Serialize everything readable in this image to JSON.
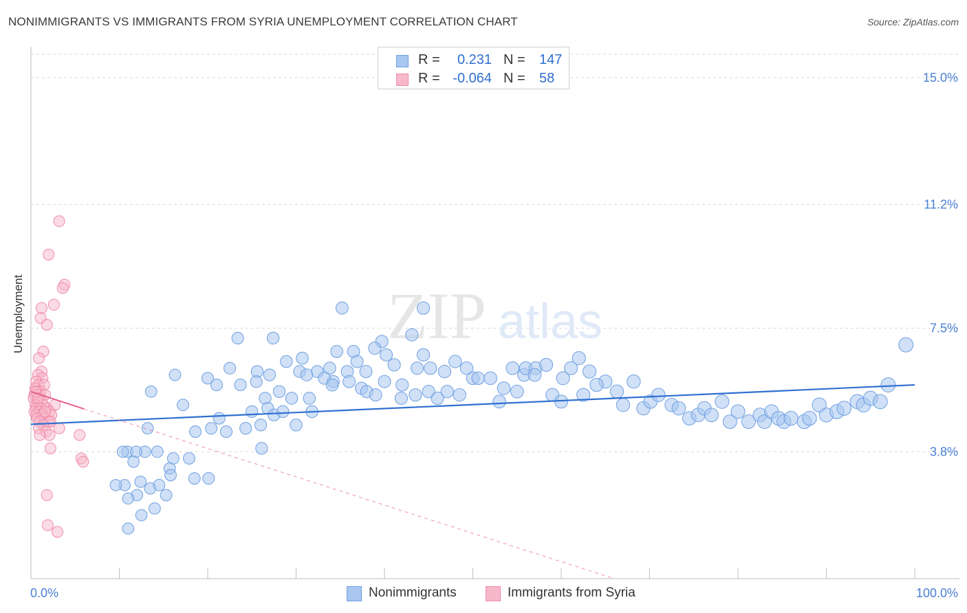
{
  "header": {
    "title": "NONIMMIGRANTS VS IMMIGRANTS FROM SYRIA UNEMPLOYMENT CORRELATION CHART",
    "source": "Source: ZipAtlas.com"
  },
  "legend": {
    "r_label": "R =",
    "n_label": "N =",
    "rows": [
      {
        "r": "0.231",
        "n": "147"
      },
      {
        "r": "-0.064",
        "n": "58"
      }
    ]
  },
  "watermark": {
    "zip": "ZIP",
    "atlas": "atlas"
  },
  "chart_data": {
    "type": "scatter",
    "title": "NONIMMIGRANTS VS IMMIGRANTS FROM SYRIA UNEMPLOYMENT CORRELATION CHART",
    "xlabel": "",
    "ylabel": "Unemployment",
    "xlim": [
      0,
      100
    ],
    "ylim": [
      0,
      15.8
    ],
    "x_tick_labels": [
      "0.0%",
      "100.0%"
    ],
    "y_ticks": [
      {
        "value": 3.8,
        "label": "3.8%"
      },
      {
        "value": 7.5,
        "label": "7.5%"
      },
      {
        "value": 11.2,
        "label": "11.2%"
      },
      {
        "value": 15.0,
        "label": "15.0%"
      }
    ],
    "grid": true,
    "legend_position": "top-center",
    "colors": {
      "series1_fill": "#a8c6f0",
      "series1_stroke": "#6f9fe0",
      "series1_line": "#2f6fd0",
      "series2_fill": "#f7b8cb",
      "series2_stroke": "#ef8aa8",
      "series2_line": "#e8608a",
      "axis_text": "#4a7fd4",
      "grid": "#d9d9d9"
    },
    "series": [
      {
        "name": "Nonimmigrants",
        "r": 0.231,
        "n": 147,
        "trend": {
          "x": [
            0,
            100
          ],
          "y": [
            4.62,
            5.8
          ]
        },
        "points": [
          [
            35.2,
            8.1
          ],
          [
            44.4,
            8.1
          ],
          [
            43.1,
            7.3
          ],
          [
            23.4,
            7.2
          ],
          [
            27.4,
            7.2
          ],
          [
            39.7,
            7.1
          ],
          [
            30.7,
            6.6
          ],
          [
            34.6,
            6.8
          ],
          [
            36.5,
            6.8
          ],
          [
            33.8,
            6.3
          ],
          [
            35.8,
            6.2
          ],
          [
            37.9,
            6.2
          ],
          [
            36.9,
            6.5
          ],
          [
            32.4,
            6.2
          ],
          [
            28.9,
            6.5
          ],
          [
            30.4,
            6.2
          ],
          [
            34.2,
            5.9
          ],
          [
            44.4,
            6.7
          ],
          [
            45.2,
            6.3
          ],
          [
            43.7,
            6.3
          ],
          [
            41.1,
            6.4
          ],
          [
            40.2,
            6.7
          ],
          [
            38.9,
            6.9
          ],
          [
            47.1,
            5.6
          ],
          [
            46.8,
            6.2
          ],
          [
            48.0,
            6.5
          ],
          [
            49.3,
            6.3
          ],
          [
            50.0,
            6.0
          ],
          [
            50.6,
            6.0
          ],
          [
            52.0,
            6.0
          ],
          [
            53.5,
            5.7
          ],
          [
            54.5,
            6.3
          ],
          [
            55.8,
            6.1
          ],
          [
            56.0,
            6.3
          ],
          [
            57.1,
            6.3
          ],
          [
            58.3,
            6.4
          ],
          [
            60.2,
            6.0
          ],
          [
            61.1,
            6.3
          ],
          [
            62.0,
            6.6
          ],
          [
            63.2,
            6.2
          ],
          [
            65.0,
            5.9
          ],
          [
            66.3,
            5.6
          ],
          [
            68.2,
            5.9
          ],
          [
            69.3,
            5.1
          ],
          [
            70.1,
            5.3
          ],
          [
            71.0,
            5.5
          ],
          [
            72.5,
            5.2
          ],
          [
            73.3,
            5.1
          ],
          [
            74.5,
            4.8
          ],
          [
            75.5,
            4.9
          ],
          [
            76.2,
            5.1
          ],
          [
            77.0,
            4.9
          ],
          [
            78.2,
            5.3
          ],
          [
            79.1,
            4.7
          ],
          [
            80.0,
            5.0
          ],
          [
            81.2,
            4.7
          ],
          [
            82.5,
            4.9
          ],
          [
            83.0,
            4.7
          ],
          [
            83.8,
            5.0
          ],
          [
            84.6,
            4.8
          ],
          [
            85.2,
            4.7
          ],
          [
            86.0,
            4.8
          ],
          [
            87.5,
            4.7
          ],
          [
            88.1,
            4.8
          ],
          [
            89.2,
            5.2
          ],
          [
            90.0,
            4.9
          ],
          [
            91.2,
            5.0
          ],
          [
            92.0,
            5.1
          ],
          [
            93.5,
            5.3
          ],
          [
            94.2,
            5.2
          ],
          [
            95.0,
            5.4
          ],
          [
            96.1,
            5.3
          ],
          [
            97.0,
            5.8
          ],
          [
            99.0,
            7.0
          ],
          [
            13.6,
            5.6
          ],
          [
            16.3,
            6.1
          ],
          [
            20.0,
            6.0
          ],
          [
            21.0,
            5.8
          ],
          [
            23.7,
            5.8
          ],
          [
            22.5,
            6.3
          ],
          [
            25.6,
            6.2
          ],
          [
            27.0,
            6.1
          ],
          [
            31.2,
            6.1
          ],
          [
            33.2,
            6.0
          ],
          [
            34.1,
            5.8
          ],
          [
            26.5,
            5.4
          ],
          [
            28.1,
            5.6
          ],
          [
            29.5,
            5.4
          ],
          [
            30.0,
            4.6
          ],
          [
            31.5,
            5.4
          ],
          [
            36.0,
            5.9
          ],
          [
            37.4,
            5.7
          ],
          [
            38.0,
            5.6
          ],
          [
            39.0,
            5.5
          ],
          [
            40.0,
            5.9
          ],
          [
            42.0,
            5.8
          ],
          [
            43.5,
            5.5
          ],
          [
            45.0,
            5.6
          ],
          [
            46.0,
            5.4
          ],
          [
            48.5,
            5.5
          ],
          [
            53.0,
            5.3
          ],
          [
            55.0,
            5.6
          ],
          [
            57.0,
            6.1
          ],
          [
            59.0,
            5.5
          ],
          [
            60.0,
            5.3
          ],
          [
            62.5,
            5.5
          ],
          [
            64.0,
            5.8
          ],
          [
            67.0,
            5.2
          ],
          [
            26.8,
            5.1
          ],
          [
            25.0,
            5.0
          ],
          [
            27.5,
            4.9
          ],
          [
            28.5,
            5.0
          ],
          [
            17.2,
            5.2
          ],
          [
            21.3,
            4.8
          ],
          [
            18.6,
            4.4
          ],
          [
            20.4,
            4.5
          ],
          [
            22.1,
            4.4
          ],
          [
            24.3,
            4.5
          ],
          [
            26.0,
            4.6
          ],
          [
            31.8,
            5.0
          ],
          [
            26.1,
            3.9
          ],
          [
            13.2,
            4.5
          ],
          [
            14.3,
            3.8
          ],
          [
            12.9,
            3.8
          ],
          [
            16.1,
            3.6
          ],
          [
            17.9,
            3.6
          ],
          [
            15.7,
            3.3
          ],
          [
            15.8,
            3.1
          ],
          [
            18.5,
            3.0
          ],
          [
            20.1,
            3.0
          ],
          [
            10.9,
            3.8
          ],
          [
            10.4,
            3.8
          ],
          [
            11.9,
            3.8
          ],
          [
            12.4,
            2.9
          ],
          [
            10.6,
            2.8
          ],
          [
            9.6,
            2.8
          ],
          [
            11.6,
            3.5
          ],
          [
            15.3,
            2.5
          ],
          [
            13.5,
            2.7
          ],
          [
            12.0,
            2.5
          ],
          [
            14.5,
            2.8
          ],
          [
            11.0,
            2.4
          ],
          [
            14.0,
            2.1
          ],
          [
            12.5,
            1.9
          ],
          [
            11.0,
            1.5
          ],
          [
            25.5,
            5.9
          ],
          [
            41.9,
            5.4
          ]
        ]
      },
      {
        "name": "Immigrants from Syria",
        "r": -0.064,
        "n": 58,
        "trend": {
          "x": [
            0,
            6
          ],
          "y": [
            5.6,
            5.08
          ]
        },
        "trend_dashed": {
          "x": [
            6,
            66
          ],
          "y": [
            5.08,
            0
          ]
        },
        "points": [
          [
            3.2,
            10.7
          ],
          [
            2.0,
            9.7
          ],
          [
            3.8,
            8.8
          ],
          [
            3.6,
            8.7
          ],
          [
            2.6,
            8.2
          ],
          [
            1.2,
            8.1
          ],
          [
            1.1,
            7.8
          ],
          [
            1.8,
            7.6
          ],
          [
            1.4,
            6.8
          ],
          [
            0.9,
            6.6
          ],
          [
            1.2,
            6.2
          ],
          [
            0.8,
            6.1
          ],
          [
            1.3,
            6.0
          ],
          [
            0.6,
            5.9
          ],
          [
            0.9,
            5.8
          ],
          [
            1.5,
            5.8
          ],
          [
            0.5,
            5.7
          ],
          [
            0.7,
            5.6
          ],
          [
            1.1,
            5.6
          ],
          [
            0.4,
            5.5
          ],
          [
            0.9,
            5.5
          ],
          [
            1.6,
            5.5
          ],
          [
            0.3,
            5.4
          ],
          [
            0.8,
            5.3
          ],
          [
            1.2,
            5.3
          ],
          [
            0.5,
            5.2
          ],
          [
            1.4,
            5.2
          ],
          [
            2.7,
            5.2
          ],
          [
            0.6,
            5.1
          ],
          [
            1.0,
            5.1
          ],
          [
            1.8,
            5.1
          ],
          [
            0.4,
            5.0
          ],
          [
            0.9,
            5.0
          ],
          [
            2.1,
            5.0
          ],
          [
            0.6,
            4.9
          ],
          [
            1.3,
            4.9
          ],
          [
            2.3,
            4.9
          ],
          [
            0.7,
            4.8
          ],
          [
            1.5,
            4.8
          ],
          [
            2.0,
            4.7
          ],
          [
            1.0,
            4.7
          ],
          [
            2.2,
            4.7
          ],
          [
            1.4,
            4.6
          ],
          [
            3.2,
            4.5
          ],
          [
            0.9,
            4.5
          ],
          [
            1.7,
            4.4
          ],
          [
            2.1,
            4.3
          ],
          [
            1.0,
            4.3
          ],
          [
            5.5,
            4.3
          ],
          [
            2.2,
            3.9
          ],
          [
            5.7,
            3.6
          ],
          [
            5.9,
            3.5
          ],
          [
            1.8,
            2.5
          ],
          [
            1.9,
            1.6
          ],
          [
            3.0,
            1.4
          ],
          [
            0.5,
            5.6
          ],
          [
            1.6,
            5.0
          ],
          [
            0.8,
            5.4
          ]
        ]
      }
    ]
  },
  "bottom_legend": [
    "Nonimmigrants",
    "Immigrants from Syria"
  ]
}
